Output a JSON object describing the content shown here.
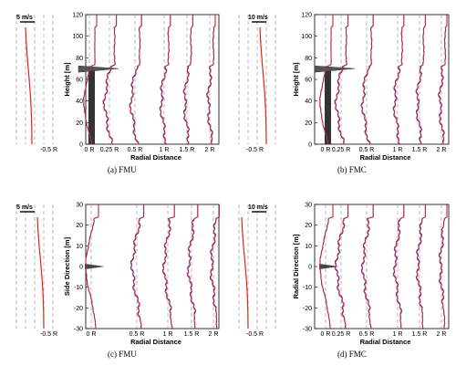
{
  "colors": {
    "series_a": "#e3231d",
    "series_b": "#2a3fd6",
    "tower": "#333333",
    "dash": "#8a8a8a"
  },
  "captions": [
    "(a) FMU",
    "(b) FMC",
    "(c) FMU",
    "(d) FMC"
  ],
  "chart_data": [
    {
      "type": "line",
      "panel": "a",
      "caption": "(a) FMU",
      "scale_label": "5 m/s",
      "inset_tick": "-0.5 R",
      "xlabel": "Radial Distance",
      "ylabel": "Height [m]",
      "ylim": [
        0,
        120
      ],
      "yticks": [
        "0",
        "20",
        "40",
        "60",
        "80",
        "100",
        "120"
      ],
      "xticks": [
        "0 R",
        "0.25 R",
        "0.5 R",
        "1 R",
        "1.5 R",
        "2 R"
      ],
      "x": [
        0,
        0.25,
        0.5,
        1,
        1.5,
        2
      ],
      "tower": true,
      "hub": 70
    },
    {
      "type": "line",
      "panel": "b",
      "caption": "(b) FMC",
      "scale_label": "10 m/s",
      "inset_tick": "-0.5 R",
      "xlabel": "Radial Distance",
      "ylabel": "Height [m]",
      "ylim": [
        0,
        120
      ],
      "yticks": [
        "0",
        "20",
        "40",
        "60",
        "80",
        "100",
        "120"
      ],
      "xticks": [
        "0 R",
        "0.25 R",
        "0.5 R",
        "1 R",
        "1.5 R",
        "2 R"
      ],
      "x": [
        0,
        0.25,
        0.5,
        1,
        1.5,
        2
      ],
      "tower": true,
      "hub": 70
    },
    {
      "type": "line",
      "panel": "c",
      "caption": "(c) FMU",
      "scale_label": "5 m/s",
      "inset_tick": "-0.5 R",
      "xlabel": "Radial Distance",
      "ylabel": "Side Direction [m]",
      "ylim": [
        -30,
        30
      ],
      "yticks": [
        "-30",
        "-20",
        "-10",
        "0",
        "10",
        "20",
        "30"
      ],
      "xticks": [
        "0 R",
        "0.5 R",
        "1 R",
        "1.5 R",
        "2 R"
      ],
      "x": [
        0,
        0.5,
        1,
        1.5,
        2
      ],
      "tower": false,
      "hub": 0
    },
    {
      "type": "line",
      "panel": "d",
      "caption": "(d) FMC",
      "scale_label": "10 m/s",
      "inset_tick": "-0.5 R",
      "xlabel": "Radial Distance",
      "ylabel": "Radial Direction [m]",
      "ylim": [
        -30,
        30
      ],
      "yticks": [
        "-30",
        "-20",
        "-10",
        "0",
        "10",
        "20",
        "30"
      ],
      "xticks": [
        "0 R",
        "0.25 R",
        "0.5 R",
        "1 R",
        "1.5 R",
        "2 R"
      ],
      "x": [
        0,
        0.25,
        0.5,
        1,
        1.5,
        2
      ],
      "tower": false,
      "hub": 0
    }
  ]
}
